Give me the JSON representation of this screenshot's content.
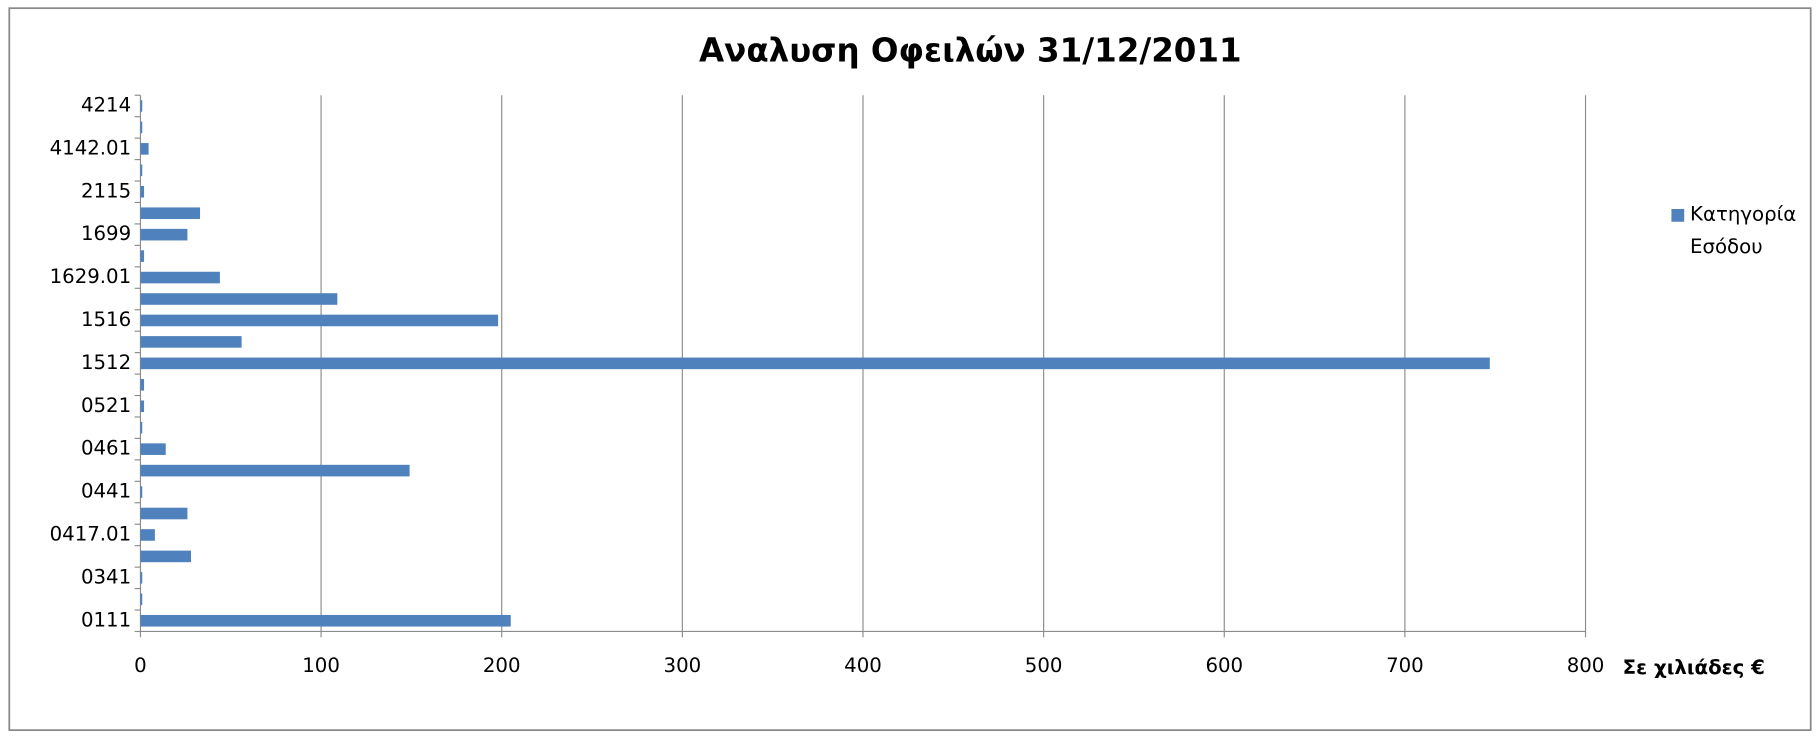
{
  "chart_data": {
    "type": "barh",
    "title": "Αναλυση Οφειλών 31/12/2011",
    "x_label": "Σε χιλιάδες €",
    "categories": [
      "0111",
      null,
      "0341",
      null,
      "0417.01",
      null,
      "0441",
      null,
      "0461",
      null,
      "0521",
      null,
      "1512",
      null,
      "1516",
      null,
      "1629.01",
      null,
      "1699",
      null,
      "2115",
      null,
      "4142.01",
      null,
      "4214"
    ],
    "series": [
      {
        "name": "Κατηγορία Εσόδου",
        "color": "#4f81bd",
        "values": [
          205,
          1,
          1,
          28,
          8,
          26,
          1,
          149,
          14,
          1,
          2,
          2,
          747,
          56,
          198,
          109,
          44,
          2,
          26,
          33,
          2,
          1,
          4.5,
          1,
          1
        ]
      }
    ],
    "xlim": [
      0,
      800
    ],
    "xticks": [
      0,
      100,
      200,
      300,
      400,
      500,
      600,
      700,
      800
    ],
    "grid": true,
    "legend": "right"
  }
}
